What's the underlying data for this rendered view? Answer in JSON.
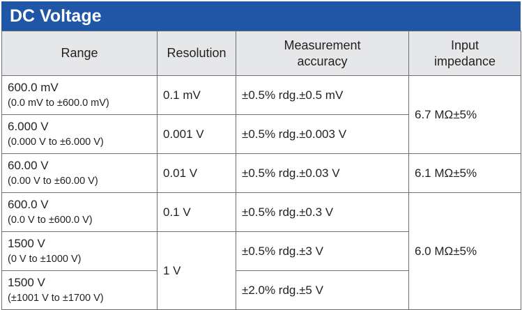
{
  "title": "DC Voltage",
  "headers": {
    "range": "Range",
    "resolution": "Resolution",
    "accuracy_line1": "Measurement",
    "accuracy_line2": "accuracy",
    "impedance_line1": "Input",
    "impedance_line2": "impedance"
  },
  "rows": [
    {
      "range": "600.0 mV",
      "range_detail": "(0.0 mV to ±600.0 mV)",
      "resolution": "0.1 mV",
      "accuracy": "±0.5% rdg.±0.5 mV"
    },
    {
      "range": "6.000 V",
      "range_detail": "(0.000 V to ±6.000 V)",
      "resolution": "0.001 V",
      "accuracy": "±0.5% rdg.±0.003 V"
    },
    {
      "range": "60.00 V",
      "range_detail": "(0.00 V to ±60.00 V)",
      "resolution": "0.01 V",
      "accuracy": "±0.5% rdg.±0.03 V"
    },
    {
      "range": "600.0 V",
      "range_detail": "(0.0 V to ±600.0 V)",
      "resolution": "0.1 V",
      "accuracy": "±0.5% rdg.±0.3 V"
    },
    {
      "range": "1500 V",
      "range_detail": "(0 V to ±1000 V)",
      "resolution": "1 V",
      "accuracy": "±0.5% rdg.±3 V"
    },
    {
      "range": "1500 V",
      "range_detail": "(±1001 V to ±1700 V)",
      "accuracy": "±2.0% rdg.±5 V"
    }
  ],
  "impedance": {
    "group1": "6.7 MΩ±5%",
    "group2": "6.1 MΩ±5%",
    "group3": "6.0 MΩ±5%"
  }
}
